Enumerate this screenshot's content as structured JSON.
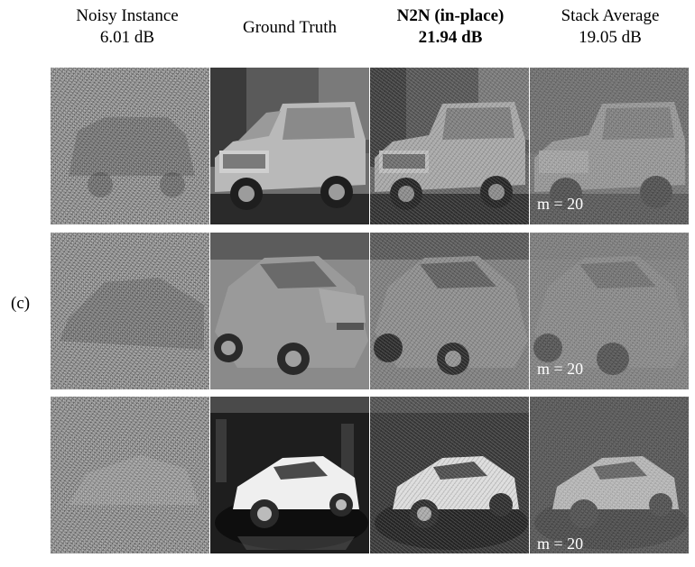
{
  "columns": {
    "noisy": {
      "title": "Noisy Instance",
      "subtitle": "6.01 dB"
    },
    "ground_truth": {
      "title": "Ground Truth"
    },
    "n2n": {
      "title": "N2N (in-place)",
      "subtitle": "21.94 dB"
    },
    "stack": {
      "title": "Stack Average",
      "subtitle": "19.05 dB"
    }
  },
  "panel_label": "(c)",
  "rows": [
    {
      "subject": "silver SUV",
      "stack_label": "m = 20"
    },
    {
      "subject": "grey sedan",
      "stack_label": "m = 20"
    },
    {
      "subject": "white coupe",
      "stack_label": "m = 20"
    }
  ]
}
